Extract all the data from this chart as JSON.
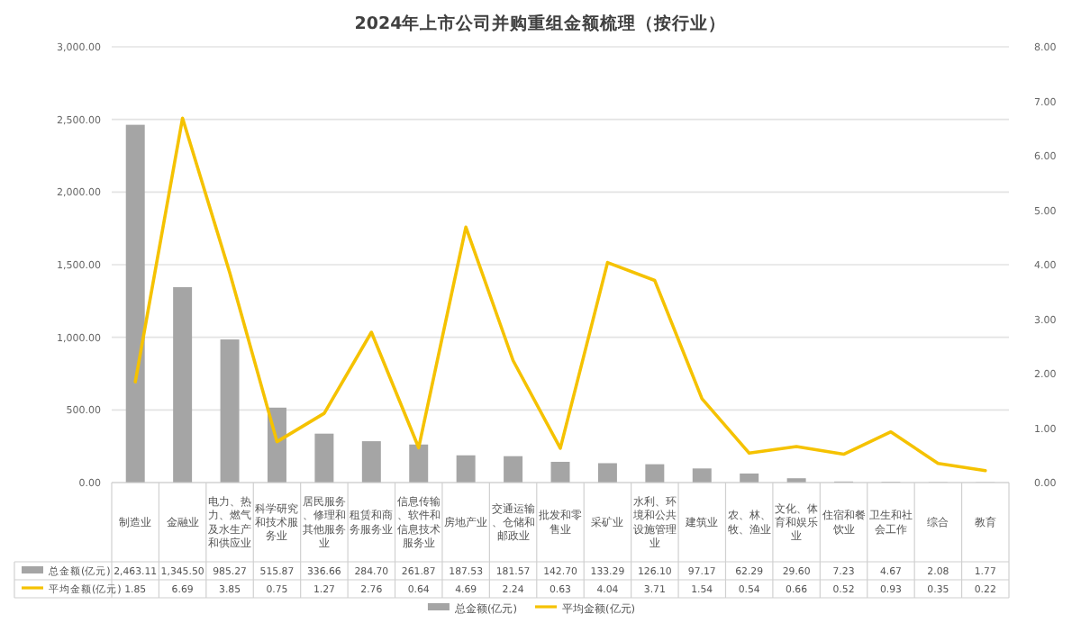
{
  "chart_data": {
    "type": "bar",
    "title": "2024年上市公司并购重组金额梳理（按行业）",
    "categories": [
      "制造业",
      "金融业",
      "电力、热力、燃气及水生产和供应业",
      "科学研究和技术服务业",
      "居民服务、修理和其他服务业",
      "租赁和商务服务业",
      "信息传输、软件和信息技术服务业",
      "房地产业",
      "交通运输、仓储和邮政业",
      "批发和零售业",
      "采矿业",
      "水利、环境和公共设施管理业",
      "建筑业",
      "农、林、牧、渔业",
      "文化、体育和娱乐业",
      "住宿和餐饮业",
      "卫生和社会工作",
      "综合",
      "教育"
    ],
    "series": [
      {
        "name": "总金额(亿元)",
        "color": "#a5a5a5",
        "values": [
          2463.11,
          1345.5,
          985.27,
          515.87,
          336.66,
          284.7,
          261.87,
          187.53,
          181.57,
          142.7,
          133.29,
          126.1,
          97.17,
          62.29,
          29.6,
          7.23,
          4.67,
          2.08,
          1.77
        ],
        "value_labels": [
          "2,463.11",
          "1,345.50",
          "985.27",
          "515.87",
          "336.66",
          "284.70",
          "261.87",
          "187.53",
          "181.57",
          "142.70",
          "133.29",
          "126.10",
          "97.17",
          "62.29",
          "29.60",
          "7.23",
          "4.67",
          "2.08",
          "1.77"
        ]
      },
      {
        "name": "平均金额(亿元)",
        "type": "line",
        "axis": "y2",
        "color": "#f5c200",
        "values": [
          1.85,
          6.69,
          3.85,
          0.75,
          1.27,
          2.76,
          0.64,
          4.69,
          2.24,
          0.63,
          4.04,
          3.71,
          1.54,
          0.54,
          0.66,
          0.52,
          0.93,
          0.35,
          0.22
        ],
        "value_labels": [
          "1.85",
          "6.69",
          "3.85",
          "0.75",
          "1.27",
          "2.76",
          "0.64",
          "4.69",
          "2.24",
          "0.63",
          "4.04",
          "3.71",
          "1.54",
          "0.54",
          "0.66",
          "0.52",
          "0.93",
          "0.35",
          "0.22"
        ]
      }
    ],
    "ylim": [
      0,
      3000
    ],
    "yticks": [
      {
        "value": 0,
        "label": "0.00"
      },
      {
        "value": 500,
        "label": "500.00"
      },
      {
        "value": 1000,
        "label": "1,000.00"
      },
      {
        "value": 1500,
        "label": "1,500.00"
      },
      {
        "value": 2000,
        "label": "2,000.00"
      },
      {
        "value": 2500,
        "label": "2,500.00"
      },
      {
        "value": 3000,
        "label": "3,000.00"
      }
    ],
    "y2lim": [
      0,
      8
    ],
    "y2ticks": [
      {
        "value": 0,
        "label": "0.00"
      },
      {
        "value": 1,
        "label": "1.00"
      },
      {
        "value": 2,
        "label": "2.00"
      },
      {
        "value": 3,
        "label": "3.00"
      },
      {
        "value": 4,
        "label": "4.00"
      },
      {
        "value": 5,
        "label": "5.00"
      },
      {
        "value": 6,
        "label": "6.00"
      },
      {
        "value": 7,
        "label": "7.00"
      },
      {
        "value": 8,
        "label": "8.00"
      }
    ],
    "grid": "y",
    "legend": "bottom",
    "marker": "none",
    "line_style": "solid"
  }
}
